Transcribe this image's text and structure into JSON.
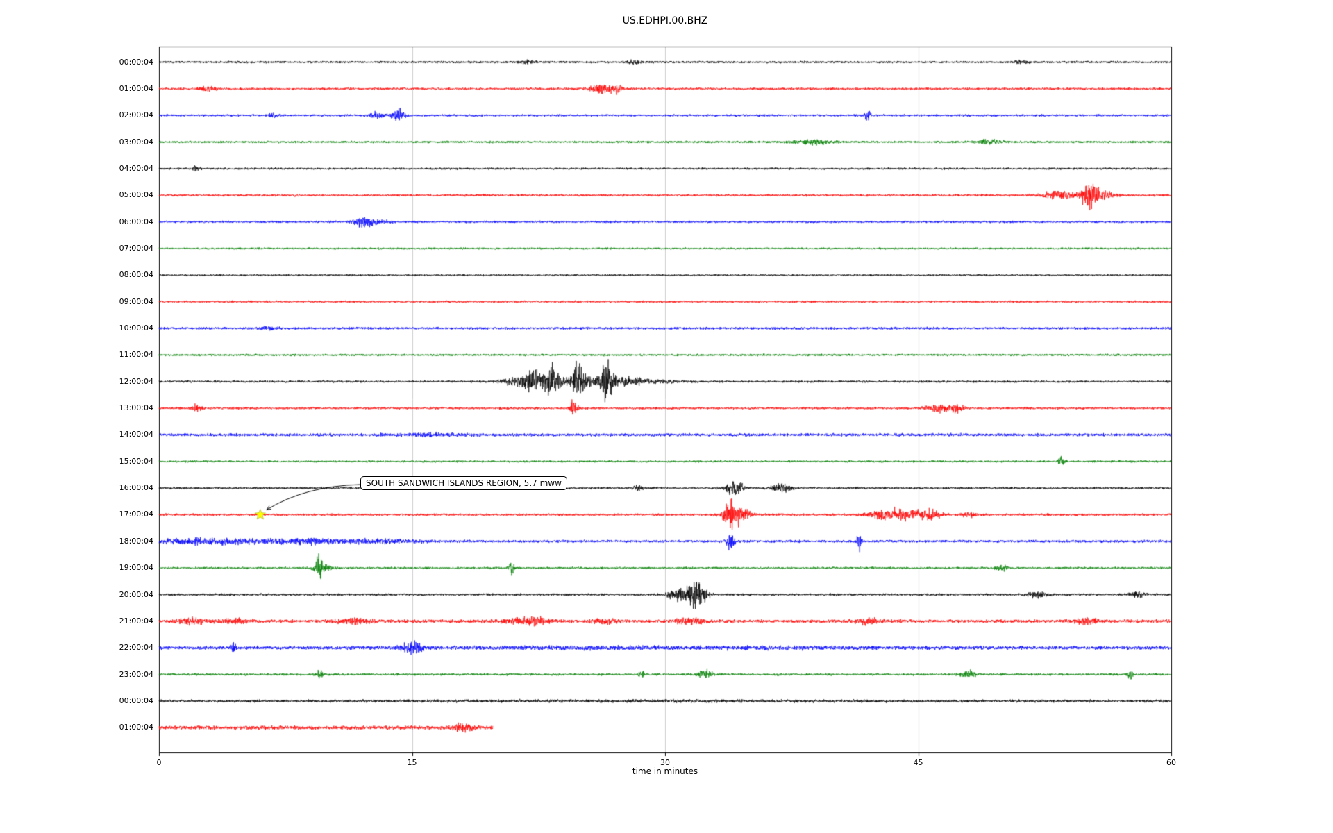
{
  "title": "US.EDHPI.00.BHZ",
  "chart_data": {
    "type": "line",
    "subtype": "seismogram-helicorder-dayplot",
    "title": "US.EDHPI.00.BHZ",
    "xlabel": "time in minutes",
    "xlim": [
      0,
      60
    ],
    "x_ticks": [
      "0",
      "15",
      "30",
      "45",
      "60"
    ],
    "x_tick_values": [
      0,
      15,
      30,
      45,
      60
    ],
    "grid": "vertical-only",
    "trace_color_cycle": [
      "#000000",
      "#ff0000",
      "#0000ff",
      "#008000"
    ],
    "annotation": {
      "text": "SOUTH SANDWICH ISLANDS REGION, 5.7 mww",
      "row_label": "17:00:04",
      "t_minutes": 6,
      "marker": "star",
      "marker_color": "#ffff00"
    },
    "rows": [
      {
        "label": "00:00:04",
        "color": "#000000",
        "base": 1.3,
        "events": [
          {
            "t": 21.8,
            "s": 0.3,
            "a": 2
          },
          {
            "t": 28.1,
            "s": 0.25,
            "a": 2.6
          },
          {
            "t": 51.0,
            "s": 0.4,
            "a": 1.6
          }
        ]
      },
      {
        "label": "01:00:04",
        "color": "#ff0000",
        "base": 1.4,
        "events": [
          {
            "t": 2.9,
            "s": 0.3,
            "a": 3
          },
          {
            "t": 26.3,
            "s": 0.5,
            "a": 5
          },
          {
            "t": 27.2,
            "s": 0.2,
            "a": 4
          }
        ]
      },
      {
        "label": "02:00:04",
        "color": "#0000ff",
        "base": 1.3,
        "events": [
          {
            "t": 6.8,
            "s": 0.2,
            "a": 2.5
          },
          {
            "t": 12.9,
            "s": 0.3,
            "a": 4
          },
          {
            "t": 14.2,
            "s": 0.25,
            "a": 7
          },
          {
            "t": 42.0,
            "s": 0.12,
            "a": 7
          }
        ]
      },
      {
        "label": "03:00:04",
        "color": "#008000",
        "base": 1.3,
        "events": [
          {
            "t": 38.7,
            "s": 0.8,
            "a": 2.5
          },
          {
            "t": 49.3,
            "s": 0.6,
            "a": 2.5
          }
        ]
      },
      {
        "label": "04:00:04",
        "color": "#000000",
        "base": 1.3,
        "events": [
          {
            "t": 2.2,
            "s": 0.15,
            "a": 3.5
          }
        ]
      },
      {
        "label": "05:00:04",
        "color": "#ff0000",
        "base": 1.4,
        "events": [
          {
            "t": 53.5,
            "s": 0.8,
            "a": 5
          },
          {
            "t": 55.2,
            "s": 0.35,
            "a": 13
          },
          {
            "t": 56.0,
            "s": 0.5,
            "a": 4
          }
        ]
      },
      {
        "label": "06:00:04",
        "color": "#0000ff",
        "base": 1.3,
        "events": [
          {
            "t": 12.0,
            "s": 0.3,
            "a": 6
          },
          {
            "t": 12.6,
            "s": 0.6,
            "a": 3
          }
        ]
      },
      {
        "label": "07:00:04",
        "color": "#008000",
        "base": 1.2,
        "events": []
      },
      {
        "label": "08:00:04",
        "color": "#000000",
        "base": 1.2,
        "events": []
      },
      {
        "label": "09:00:04",
        "color": "#ff0000",
        "base": 1.3,
        "events": []
      },
      {
        "label": "10:00:04",
        "color": "#0000ff",
        "base": 1.5,
        "events": [
          {
            "t": 6.5,
            "s": 0.4,
            "a": 1.5
          }
        ]
      },
      {
        "label": "11:00:04",
        "color": "#008000",
        "base": 1.3,
        "events": []
      },
      {
        "label": "12:00:04",
        "color": "#000000",
        "base": 1.4,
        "events": [
          {
            "t": 21.5,
            "s": 0.8,
            "a": 5
          },
          {
            "t": 22.5,
            "s": 0.6,
            "a": 8
          },
          {
            "t": 23.3,
            "s": 0.3,
            "a": 14
          },
          {
            "t": 24.8,
            "s": 0.25,
            "a": 18
          },
          {
            "t": 26.6,
            "s": 0.2,
            "a": 24
          },
          {
            "t": 25.8,
            "s": 1.2,
            "a": 5
          },
          {
            "t": 28.0,
            "s": 1.5,
            "a": 3
          }
        ]
      },
      {
        "label": "13:00:04",
        "color": "#ff0000",
        "base": 1.4,
        "events": [
          {
            "t": 2.2,
            "s": 0.2,
            "a": 3.5
          },
          {
            "t": 24.6,
            "s": 0.15,
            "a": 10
          },
          {
            "t": 46.2,
            "s": 0.5,
            "a": 5
          },
          {
            "t": 47.3,
            "s": 0.3,
            "a": 4
          }
        ]
      },
      {
        "label": "14:00:04",
        "color": "#0000ff",
        "base": 1.8,
        "events": [
          {
            "t": 16.0,
            "s": 1.5,
            "a": 1.2
          }
        ]
      },
      {
        "label": "15:00:04",
        "color": "#008000",
        "base": 1.3,
        "events": [
          {
            "t": 53.5,
            "s": 0.15,
            "a": 5
          }
        ]
      },
      {
        "label": "16:00:04",
        "color": "#000000",
        "base": 1.4,
        "events": [
          {
            "t": 28.4,
            "s": 0.2,
            "a": 2.5
          },
          {
            "t": 33.9,
            "s": 0.25,
            "a": 8
          },
          {
            "t": 34.4,
            "s": 0.2,
            "a": 6
          },
          {
            "t": 36.9,
            "s": 0.4,
            "a": 5
          }
        ]
      },
      {
        "label": "17:00:04",
        "color": "#ff0000",
        "base": 1.5,
        "events": [
          {
            "t": 33.9,
            "s": 0.3,
            "a": 15
          },
          {
            "t": 34.5,
            "s": 0.5,
            "a": 6
          },
          {
            "t": 43.0,
            "s": 0.6,
            "a": 6
          },
          {
            "t": 44.5,
            "s": 0.8,
            "a": 5
          },
          {
            "t": 45.8,
            "s": 0.4,
            "a": 4
          },
          {
            "t": 48.0,
            "s": 0.3,
            "a": 3
          }
        ]
      },
      {
        "label": "18:00:04",
        "color": "#0000ff",
        "base": 1.6,
        "events": [
          {
            "t": 2.0,
            "s": 1.5,
            "a": 2.5
          },
          {
            "t": 5.0,
            "s": 2.0,
            "a": 2
          },
          {
            "t": 9.0,
            "s": 1.5,
            "a": 2.5
          },
          {
            "t": 13.0,
            "s": 1.5,
            "a": 2
          },
          {
            "t": 33.9,
            "s": 0.15,
            "a": 13
          },
          {
            "t": 41.5,
            "s": 0.1,
            "a": 10
          }
        ]
      },
      {
        "label": "19:00:04",
        "color": "#008000",
        "base": 1.3,
        "events": [
          {
            "t": 9.5,
            "s": 0.12,
            "a": 16
          },
          {
            "t": 9.7,
            "s": 0.4,
            "a": 4
          },
          {
            "t": 20.9,
            "s": 0.1,
            "a": 10
          },
          {
            "t": 50.0,
            "s": 0.3,
            "a": 2.5
          }
        ]
      },
      {
        "label": "20:00:04",
        "color": "#000000",
        "base": 1.4,
        "events": [
          {
            "t": 30.8,
            "s": 0.4,
            "a": 8
          },
          {
            "t": 31.7,
            "s": 0.25,
            "a": 16
          },
          {
            "t": 32.2,
            "s": 0.3,
            "a": 8
          },
          {
            "t": 52.0,
            "s": 0.4,
            "a": 3
          },
          {
            "t": 58.0,
            "s": 0.3,
            "a": 3.5
          }
        ]
      },
      {
        "label": "21:00:04",
        "color": "#ff0000",
        "base": 2.0,
        "events": [
          {
            "t": 2.0,
            "s": 0.6,
            "a": 3
          },
          {
            "t": 4.5,
            "s": 0.5,
            "a": 3
          },
          {
            "t": 11.5,
            "s": 0.8,
            "a": 3
          },
          {
            "t": 21.5,
            "s": 0.7,
            "a": 3.5
          },
          {
            "t": 22.5,
            "s": 0.4,
            "a": 3
          },
          {
            "t": 26.5,
            "s": 0.5,
            "a": 3
          },
          {
            "t": 31.5,
            "s": 0.6,
            "a": 3.5
          },
          {
            "t": 42.0,
            "s": 0.5,
            "a": 3
          },
          {
            "t": 55.0,
            "s": 0.5,
            "a": 3
          }
        ]
      },
      {
        "label": "22:00:04",
        "color": "#0000ff",
        "base": 2.2,
        "events": [
          {
            "t": 4.4,
            "s": 0.1,
            "a": 5
          },
          {
            "t": 14.8,
            "s": 0.4,
            "a": 4
          },
          {
            "t": 15.3,
            "s": 0.2,
            "a": 5
          },
          {
            "t": 30.0,
            "s": 9.0,
            "a": 0.8
          }
        ]
      },
      {
        "label": "23:00:04",
        "color": "#008000",
        "base": 1.4,
        "events": [
          {
            "t": 9.5,
            "s": 0.15,
            "a": 5
          },
          {
            "t": 28.6,
            "s": 0.12,
            "a": 5
          },
          {
            "t": 32.4,
            "s": 0.3,
            "a": 5
          },
          {
            "t": 48.0,
            "s": 0.3,
            "a": 3.5
          },
          {
            "t": 57.6,
            "s": 0.1,
            "a": 6
          }
        ]
      },
      {
        "label": "00:00:04",
        "color": "#000000",
        "base": 1.7,
        "events": [
          {
            "t": 30.0,
            "s": 12.0,
            "a": 0.4
          }
        ]
      },
      {
        "label": "01:00:04",
        "color": "#ff0000",
        "base": 2.3,
        "end": 19.8,
        "events": [
          {
            "t": 18.0,
            "s": 0.4,
            "a": 4
          }
        ]
      }
    ]
  }
}
